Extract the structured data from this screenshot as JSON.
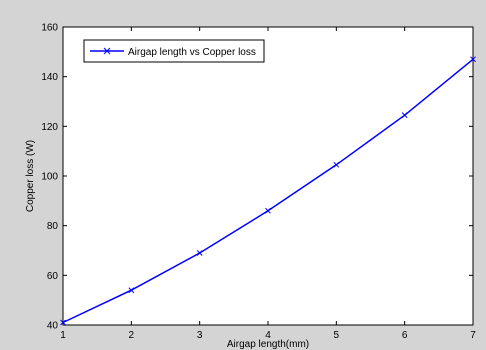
{
  "chart_data": {
    "type": "line",
    "title": "",
    "xlabel": "Airgap length(mm)",
    "ylabel": "Copper loss (W)",
    "xlim": [
      1,
      7
    ],
    "ylim": [
      40,
      160
    ],
    "xticks": [
      1,
      2,
      3,
      4,
      5,
      6,
      7
    ],
    "yticks": [
      40,
      60,
      80,
      100,
      120,
      140,
      160
    ],
    "grid": false,
    "legend_position": "top-left",
    "series": [
      {
        "name": "Airgap length vs Copper loss",
        "color": "#0000ff",
        "marker": "x",
        "x": [
          1,
          2,
          3,
          4,
          5,
          6,
          7
        ],
        "y": [
          41,
          54,
          69,
          86,
          104.5,
          124.5,
          147
        ]
      }
    ]
  }
}
